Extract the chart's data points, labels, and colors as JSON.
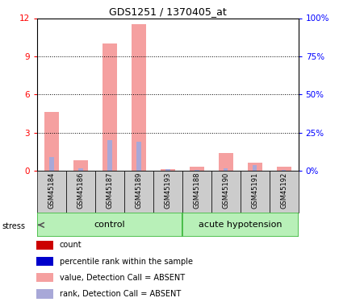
{
  "title": "GDS1251 / 1370405_at",
  "samples": [
    "GSM45184",
    "GSM45186",
    "GSM45187",
    "GSM45189",
    "GSM45193",
    "GSM45188",
    "GSM45190",
    "GSM45191",
    "GSM45192"
  ],
  "value_bars": [
    4.6,
    0.8,
    10.0,
    11.5,
    0.1,
    0.3,
    1.4,
    0.6,
    0.3
  ],
  "rank_bars": [
    9.0,
    1.5,
    20.0,
    19.0,
    0.8,
    0.5,
    1.5,
    3.5,
    0.5
  ],
  "ylim_left": [
    0,
    12
  ],
  "ylim_right": [
    0,
    100
  ],
  "yticks_left": [
    0,
    3,
    6,
    9,
    12
  ],
  "ytick_labels_left": [
    "0",
    "3",
    "6",
    "9",
    "12"
  ],
  "yticks_right": [
    0,
    25,
    50,
    75,
    100
  ],
  "ytick_labels_right": [
    "0%",
    "25%",
    "50%",
    "75%",
    "100%"
  ],
  "color_value": "#f5a0a0",
  "color_rank": "#a8a8d8",
  "group_bg_light": "#b8f0b8",
  "group_bg_dark": "#40b840",
  "label_region_bg": "#cccccc",
  "bar_width": 0.5,
  "n_control": 5,
  "legend_items": [
    {
      "label": "count",
      "color": "#cc0000"
    },
    {
      "label": "percentile rank within the sample",
      "color": "#0000cc"
    },
    {
      "label": "value, Detection Call = ABSENT",
      "color": "#f5a0a0"
    },
    {
      "label": "rank, Detection Call = ABSENT",
      "color": "#a8a8d8"
    }
  ]
}
